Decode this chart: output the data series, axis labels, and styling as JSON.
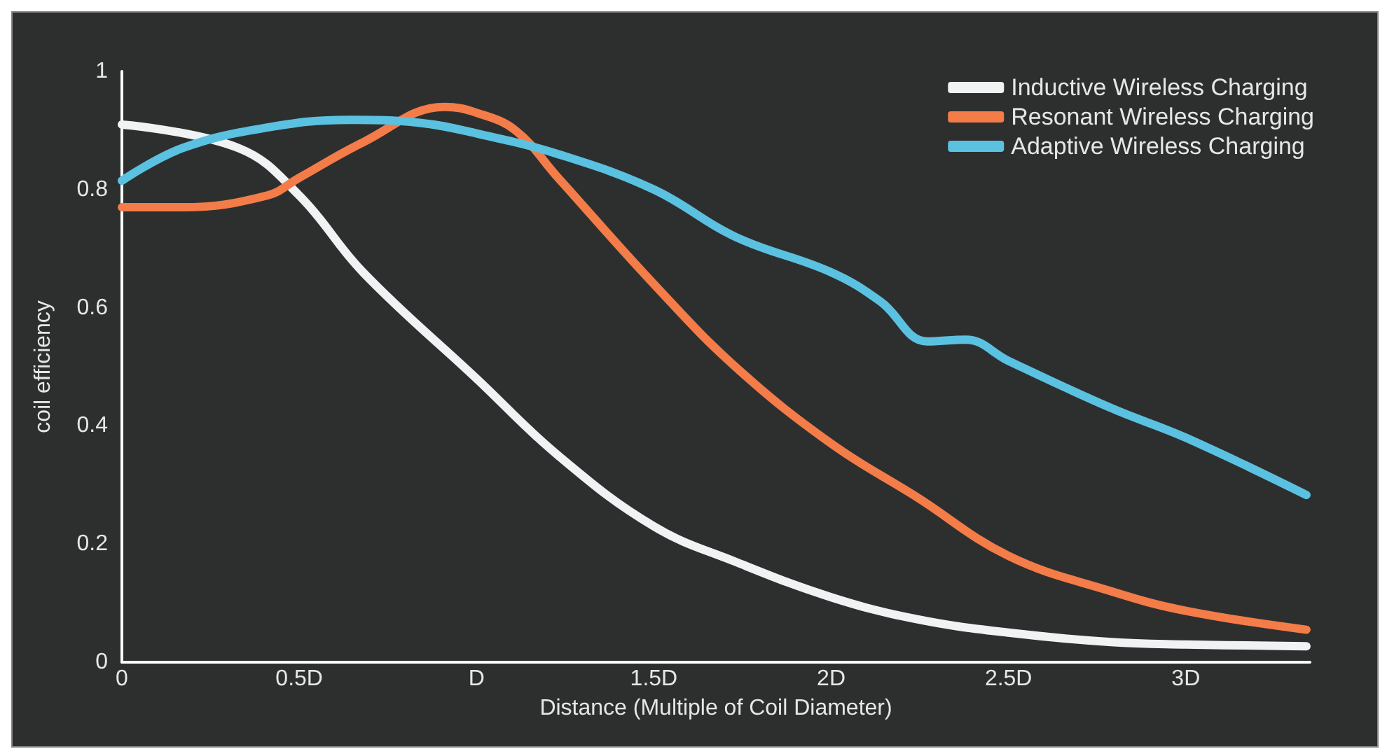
{
  "chart_data": {
    "type": "line",
    "xlabel": "Distance (Multiple of Coil Diameter)",
    "ylabel": "coil efficiency",
    "xlim": [
      0,
      3.35
    ],
    "xticks": [
      0,
      {
        "value": 0.5,
        "label": "0.5D"
      },
      {
        "value": 1,
        "label": "D"
      },
      {
        "value": 1.5,
        "label": "1.5D"
      },
      {
        "value": 2,
        "label": "2D"
      },
      {
        "value": 2.5,
        "label": "2.5D"
      },
      {
        "value": 3,
        "label": "3D"
      }
    ],
    "ylim": [
      0,
      1
    ],
    "yticks": [
      0,
      0.2,
      0.4,
      0.6,
      0.8,
      1
    ],
    "grid": false,
    "legend": "top right",
    "marker": "none",
    "line_style": "solid",
    "series": [
      {
        "name": "Inductive Wireless Charging",
        "color": "#f0f2f4",
        "x": [
          0,
          0.33,
          0.5,
          0.68,
          1,
          1.23,
          1.5,
          1.73,
          2,
          2.24,
          2.5,
          2.79,
          3,
          3.34
        ],
        "values": [
          0.91,
          0.87,
          0.79,
          0.66,
          0.48,
          0.35,
          0.23,
          0.17,
          0.11,
          0.073,
          0.05,
          0.034,
          0.03,
          0.027
        ]
      },
      {
        "name": "Resonant Wireless Charging",
        "color": "#f47c48",
        "x": [
          0,
          0.17,
          0.41,
          0.5,
          0.68,
          0.91,
          1,
          1.11,
          1.23,
          1.5,
          1.73,
          2,
          2.24,
          2.5,
          2.79,
          3,
          3.34
        ],
        "values": [
          0.77,
          0.77,
          0.79,
          0.82,
          0.88,
          0.94,
          0.93,
          0.9,
          0.82,
          0.64,
          0.5,
          0.37,
          0.28,
          0.18,
          0.12,
          0.087,
          0.055
        ]
      },
      {
        "name": "Adaptive Wireless Charging",
        "color": "#5bc1e0",
        "x": [
          0,
          0.17,
          0.41,
          0.64,
          0.84,
          1,
          1.23,
          1.5,
          1.73,
          2,
          2.14,
          2.27,
          2.38,
          2.5,
          2.79,
          3,
          3.34
        ],
        "values": [
          0.815,
          0.87,
          0.905,
          0.918,
          0.913,
          0.895,
          0.86,
          0.8,
          0.72,
          0.66,
          0.61,
          0.543,
          0.546,
          0.51,
          0.43,
          0.38,
          0.283
        ]
      }
    ]
  }
}
